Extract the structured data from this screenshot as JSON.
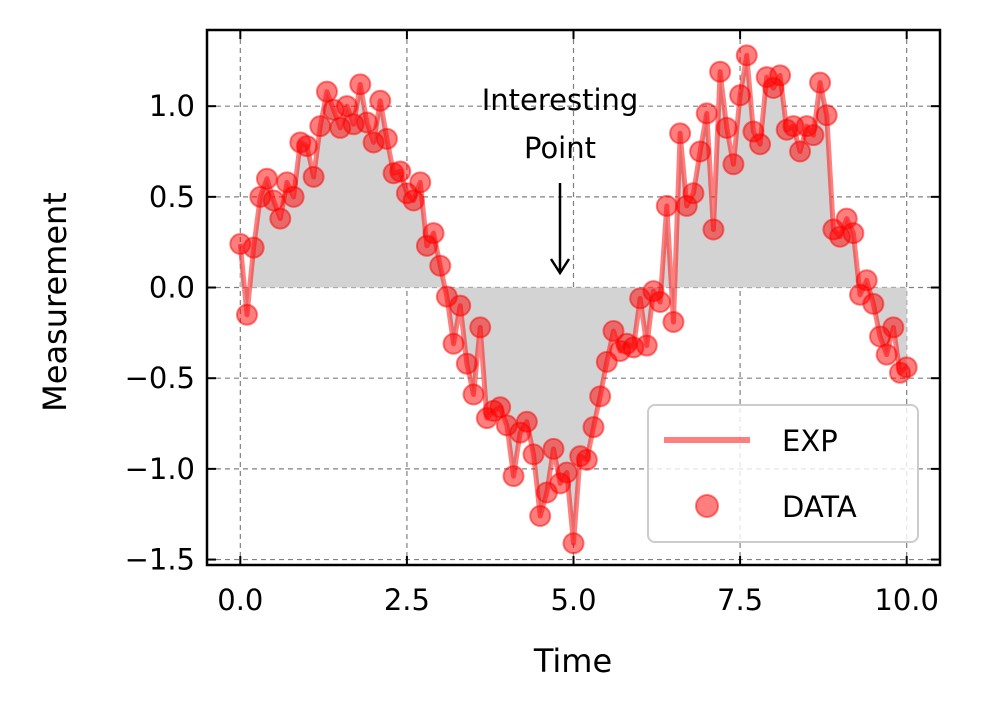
{
  "chart_data": {
    "type": "line",
    "xlabel": "Time",
    "ylabel": "Measurement",
    "xlim": [
      -0.5,
      10.5
    ],
    "ylim": [
      -1.53,
      1.42
    ],
    "xticks": [
      0,
      2.5,
      5,
      7.5,
      10
    ],
    "xtick_labels": [
      "0.0",
      "2.5",
      "5.0",
      "7.5",
      "10.0"
    ],
    "yticks": [
      -1.5,
      -1.0,
      -0.5,
      0.0,
      0.5,
      1.0
    ],
    "ytick_labels": [
      "−1.5",
      "−1.0",
      "−0.5",
      "0.0",
      "0.5",
      "1.0"
    ],
    "grid": true,
    "fill_between_zero": true,
    "fill_color": "#d3d3d3",
    "legend_position": "lower-right",
    "series": [
      {
        "name": "EXP",
        "kind": "line",
        "color": "#ff0000",
        "opacity": 0.5,
        "x": [
          0,
          0.1,
          0.2,
          0.3,
          0.4,
          0.5,
          0.6,
          0.7,
          0.8,
          0.9,
          1.0,
          1.1,
          1.2,
          1.3,
          1.4,
          1.5,
          1.6,
          1.7,
          1.8,
          1.9,
          2.0,
          2.1,
          2.2,
          2.3,
          2.4,
          2.5,
          2.6,
          2.7,
          2.8,
          2.9,
          3.0,
          3.1,
          3.2,
          3.3,
          3.4,
          3.5,
          3.6,
          3.7,
          3.8,
          3.9,
          4.0,
          4.1,
          4.2,
          4.3,
          4.4,
          4.5,
          4.6,
          4.7,
          4.8,
          4.9,
          5.0,
          5.1,
          5.2,
          5.3,
          5.4,
          5.5,
          5.6,
          5.7,
          5.8,
          5.9,
          6.0,
          6.1,
          6.2,
          6.3,
          6.4,
          6.5,
          6.6,
          6.7,
          6.8,
          6.9,
          7.0,
          7.1,
          7.2,
          7.3,
          7.4,
          7.5,
          7.6,
          7.7,
          7.8,
          7.9,
          8.0,
          8.1,
          8.2,
          8.3,
          8.4,
          8.5,
          8.6,
          8.7,
          8.8,
          8.9,
          9.0,
          9.1,
          9.2,
          9.3,
          9.4,
          9.5,
          9.6,
          9.7,
          9.8,
          9.9,
          10.0
        ],
        "y": [
          0.24,
          -0.15,
          0.22,
          0.5,
          0.6,
          0.48,
          0.38,
          0.58,
          0.5,
          0.8,
          0.78,
          0.61,
          0.89,
          1.08,
          0.98,
          0.88,
          1.0,
          0.9,
          1.12,
          0.91,
          0.8,
          1.03,
          0.82,
          0.63,
          0.64,
          0.52,
          0.48,
          0.58,
          0.23,
          0.3,
          0.12,
          -0.05,
          -0.31,
          -0.1,
          -0.42,
          -0.59,
          -0.22,
          -0.72,
          -0.68,
          -0.66,
          -0.76,
          -1.04,
          -0.8,
          -0.74,
          -0.92,
          -1.26,
          -1.13,
          -0.89,
          -1.08,
          -1.02,
          -1.41,
          -0.93,
          -0.95,
          -0.77,
          -0.6,
          -0.41,
          -0.24,
          -0.35,
          -0.31,
          -0.33,
          -0.06,
          -0.32,
          -0.02,
          -0.08,
          0.45,
          -0.19,
          0.85,
          0.45,
          0.52,
          0.75,
          0.96,
          0.32,
          1.19,
          0.88,
          0.68,
          1.06,
          1.28,
          0.86,
          0.79,
          1.16,
          1.1,
          1.17,
          0.87,
          0.89,
          0.75,
          0.89,
          0.84,
          1.13,
          0.95,
          0.32,
          0.28,
          0.38,
          0.3,
          -0.04,
          0.04,
          -0.09,
          -0.27,
          -0.37,
          -0.22,
          -0.47,
          -0.44
        ]
      },
      {
        "name": "DATA",
        "kind": "scatter",
        "color": "#ff0000",
        "opacity": 0.5
      }
    ],
    "annotations": [
      {
        "text_lines": [
          "Interesting",
          "Point"
        ],
        "xy": [
          4.8,
          0.02
        ],
        "xytext": [
          4.8,
          0.6
        ]
      }
    ]
  }
}
